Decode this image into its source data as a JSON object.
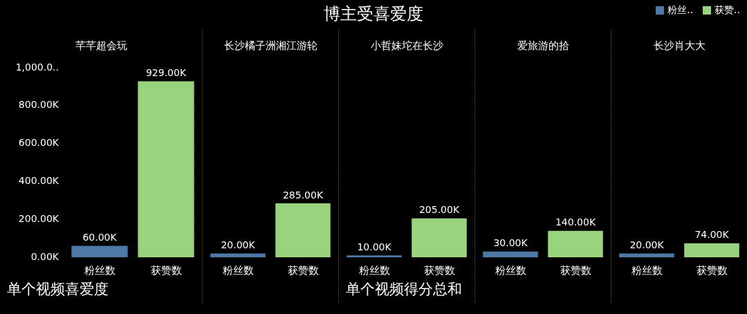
{
  "chart_data": [
    {
      "type": "other",
      "title": "博主受喜爱度"
    },
    {
      "type": "bar",
      "subtitle": "芊芊超会玩",
      "legend": "top right",
      "stacked": true,
      "categories": [
        "粉丝数",
        "获赞数"
      ],
      "series": [
        {
          "name": "粉丝..",
          "color": "#4e79a7",
          "values": [
            60,
            null
          ],
          "value_labels": [
            "60.00K",
            null
          ]
        },
        {
          "name": "获赞..",
          "color": "#98d47e",
          "values": [
            null,
            929
          ],
          "value_labels": [
            null,
            "929.00K"
          ]
        }
      ],
      "ylim": [
        0,
        1000
      ],
      "yticks": [
        {
          "value": 0,
          "label": "0.00K"
        },
        {
          "value": 200,
          "label": "200.00K"
        },
        {
          "value": 400,
          "label": "400.00K"
        },
        {
          "value": 600,
          "label": "600.00K"
        },
        {
          "value": 800,
          "label": "800.00K"
        },
        {
          "value": 1000,
          "label": "1,000.0.."
        }
      ],
      "annotations": [
        "单个视频喜爱度"
      ]
    },
    {
      "type": "bar",
      "subtitle": "长沙橘子洲湘江游轮",
      "stacked": true,
      "categories": [
        "粉丝数",
        "获赞数"
      ],
      "tick_labels": "x",
      "series": [
        {
          "color": "#4e79a7",
          "values": [
            20,
            null
          ],
          "value_labels": [
            "20.00K",
            null
          ]
        },
        {
          "color": "#98d47e",
          "values": [
            null,
            285
          ],
          "value_labels": [
            null,
            "285.00K"
          ]
        }
      ],
      "ylim": [
        0,
        1000
      ]
    },
    {
      "type": "bar",
      "subtitle": "小哲妹坨在长沙",
      "stacked": true,
      "categories": [
        "粉丝数",
        "获赞数"
      ],
      "tick_labels": "x",
      "series": [
        {
          "color": "#4e79a7",
          "values": [
            10,
            null
          ],
          "value_labels": [
            "10.00K",
            null
          ]
        },
        {
          "color": "#98d47e",
          "values": [
            null,
            205
          ],
          "value_labels": [
            null,
            "205.00K"
          ]
        }
      ],
      "ylim": [
        0,
        1000
      ],
      "annotations": [
        "单个视频得分总和"
      ]
    },
    {
      "type": "bar",
      "subtitle": "爱旅游的拾",
      "stacked": true,
      "categories": [
        "粉丝数",
        "获赞数"
      ],
      "tick_labels": "x",
      "series": [
        {
          "color": "#4e79a7",
          "values": [
            30,
            null
          ],
          "value_labels": [
            "30.00K",
            null
          ]
        },
        {
          "color": "#98d47e",
          "values": [
            null,
            140
          ],
          "value_labels": [
            null,
            "140.00K"
          ]
        }
      ],
      "ylim": [
        0,
        1000
      ]
    },
    {
      "type": "bar",
      "subtitle": "长沙肖大大",
      "stacked": true,
      "categories": [
        "粉丝数",
        "获赞数"
      ],
      "tick_labels": "x",
      "series": [
        {
          "color": "#4e79a7",
          "values": [
            20,
            null
          ],
          "value_labels": [
            "20.00K",
            null
          ]
        },
        {
          "color": "#98d47e",
          "values": [
            null,
            74
          ],
          "value_labels": [
            null,
            "74.00K"
          ]
        }
      ],
      "ylim": [
        0,
        1000
      ]
    }
  ]
}
